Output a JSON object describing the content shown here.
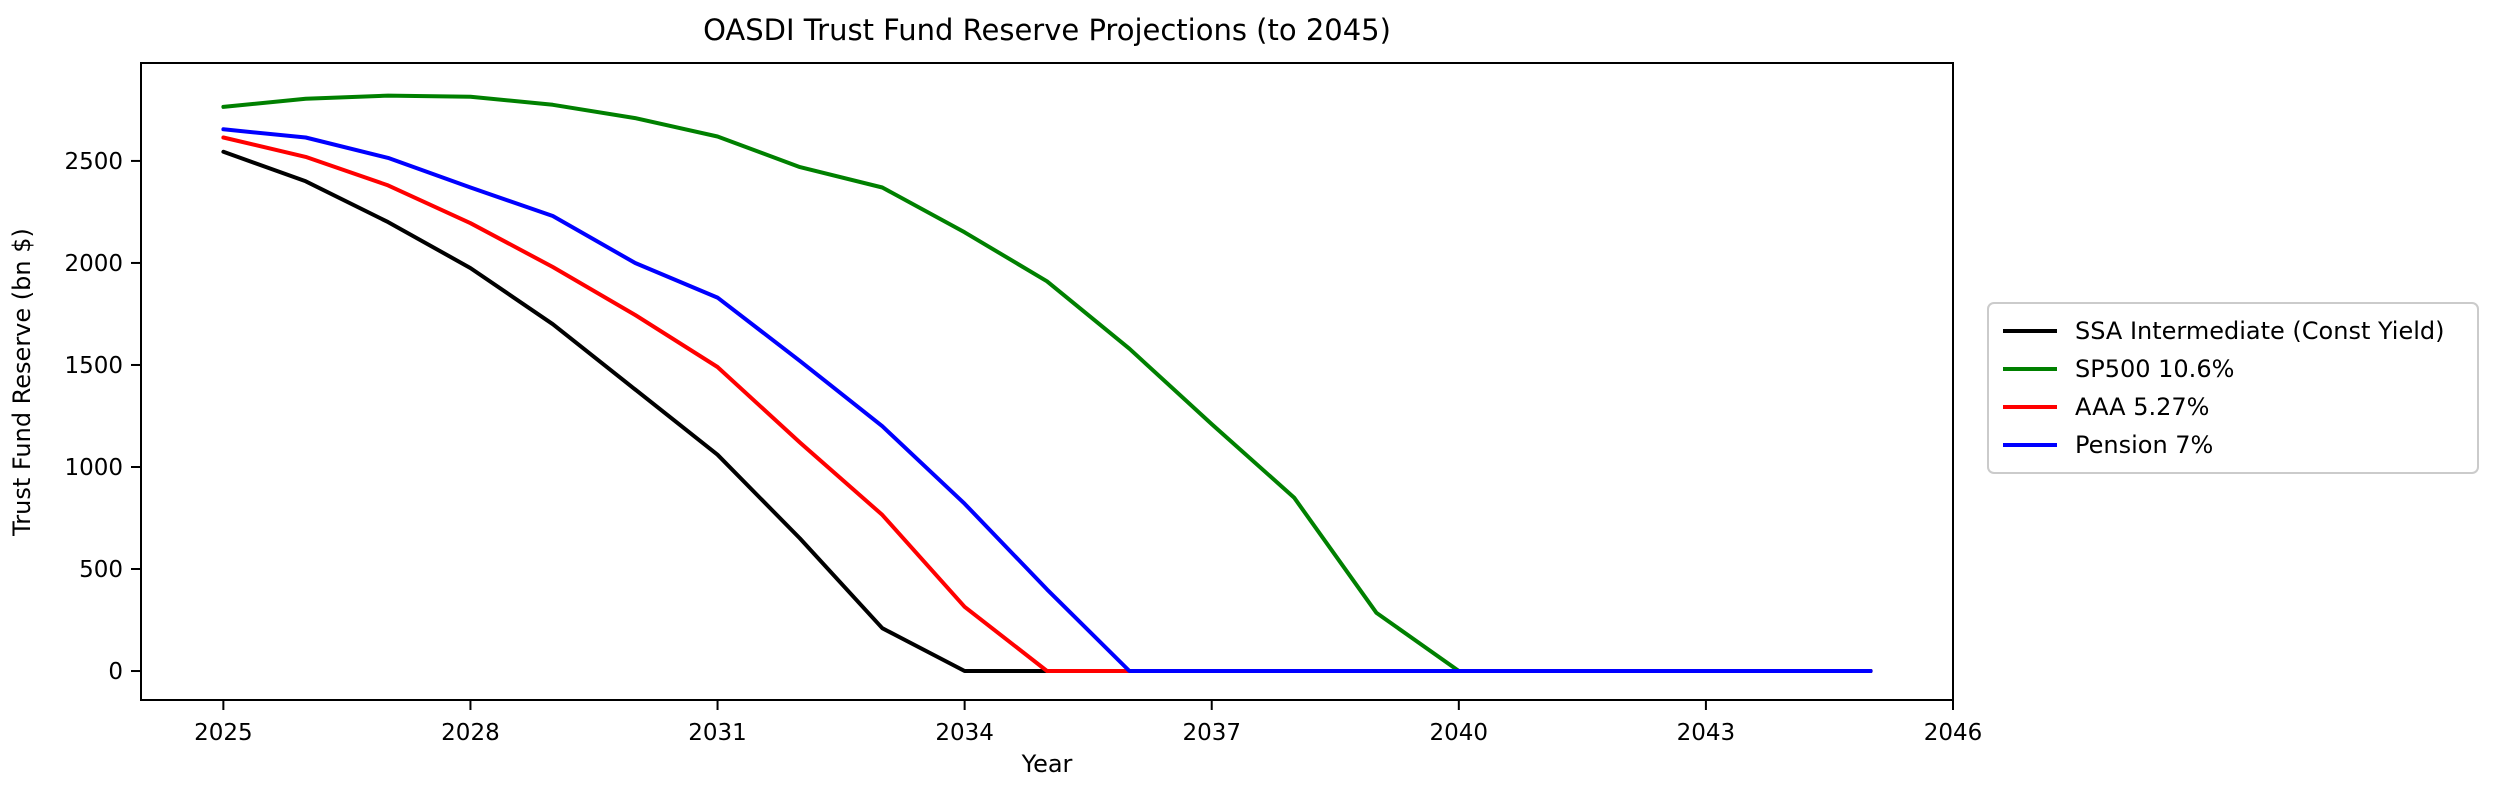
{
  "figure": {
    "background": "#ffffff"
  },
  "chart_data": {
    "type": "line",
    "title": "OASDI Trust Fund Reserve Projections (to 2045)",
    "xlabel": "Year",
    "ylabel": "Trust Fund Reserve (bn $)",
    "x": [
      2025,
      2026,
      2027,
      2028,
      2029,
      2030,
      2031,
      2032,
      2033,
      2034,
      2035,
      2036,
      2037,
      2038,
      2039,
      2040,
      2041,
      2042,
      2043,
      2044,
      2045
    ],
    "series": [
      {
        "name": "SSA Intermediate (Const Yield)",
        "color": "#000000",
        "values": [
          2545,
          2400,
          2200,
          1975,
          1700,
          1380,
          1060,
          650,
          210,
          0,
          0,
          0,
          0,
          0,
          0,
          0,
          0,
          0,
          0,
          0,
          0
        ]
      },
      {
        "name": "SP500 10.6%",
        "color": "#008000",
        "values": [
          2765,
          2805,
          2820,
          2815,
          2775,
          2710,
          2620,
          2470,
          2370,
          2150,
          1910,
          1580,
          1210,
          850,
          285,
          0,
          0,
          0,
          0,
          0,
          0
        ]
      },
      {
        "name": "AAA 5.27%",
        "color": "#ff0000",
        "values": [
          2615,
          2520,
          2380,
          2195,
          1980,
          1745,
          1490,
          1120,
          765,
          315,
          0,
          0,
          0,
          0,
          0,
          0,
          0,
          0,
          0,
          0,
          0
        ]
      },
      {
        "name": "Pension 7%",
        "color": "#0000ff",
        "values": [
          2655,
          2615,
          2515,
          2370,
          2230,
          2000,
          1830,
          1520,
          1200,
          820,
          400,
          0,
          0,
          0,
          0,
          0,
          0,
          0,
          0,
          0,
          0
        ]
      }
    ],
    "xlim": [
      2024,
      2046
    ],
    "ylim": [
      -142,
      2980
    ],
    "xticks": [
      2025,
      2028,
      2031,
      2034,
      2037,
      2040,
      2043,
      2046
    ],
    "yticks": [
      0,
      500,
      1000,
      1500,
      2000,
      2500
    ],
    "grid": false,
    "legend_position": "center-right-outside",
    "axis_color": "#000000"
  }
}
